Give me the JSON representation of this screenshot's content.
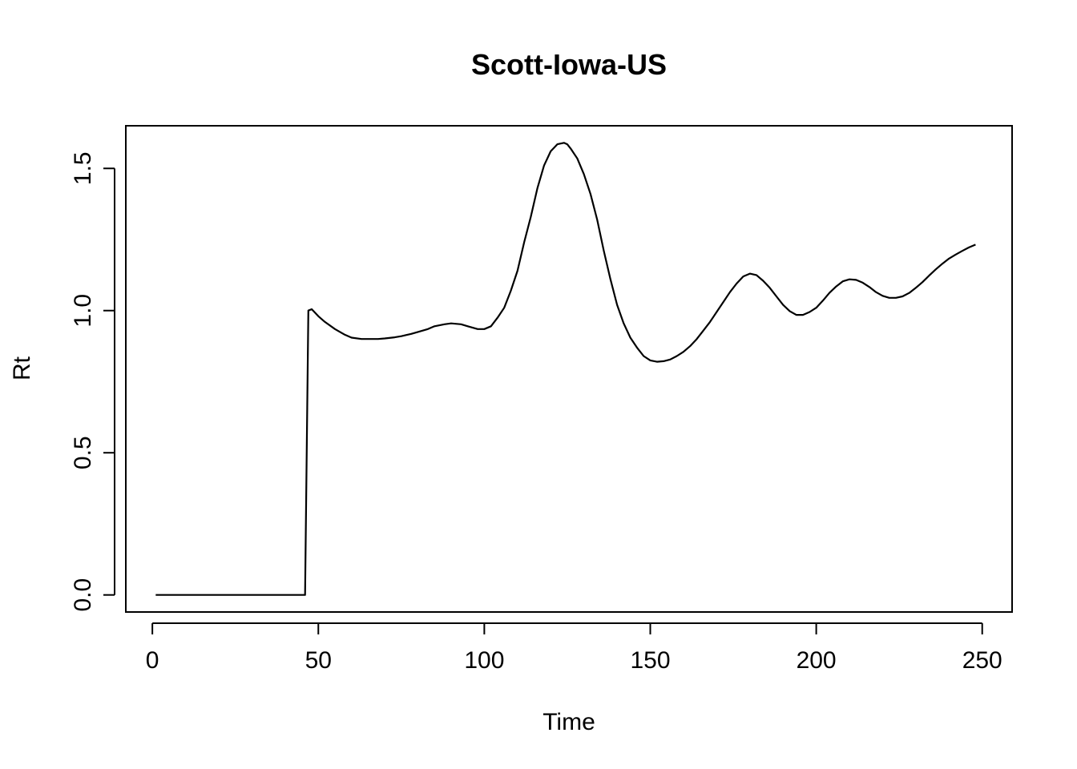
{
  "chart_data": {
    "type": "line",
    "title": "Scott-Iowa-US",
    "xlabel": "Time",
    "ylabel": "Rt",
    "xlim": [
      -8,
      259
    ],
    "ylim": [
      -0.06,
      1.65
    ],
    "x_ticks": [
      0,
      50,
      100,
      150,
      200,
      250
    ],
    "x_tick_labels": [
      "0",
      "50",
      "100",
      "150",
      "200",
      "250"
    ],
    "y_ticks": [
      0.0,
      0.5,
      1.0,
      1.5
    ],
    "y_tick_labels": [
      "0.0",
      "0.5",
      "1.0",
      "1.5"
    ],
    "grid": false,
    "legend": "none",
    "line_color": "#000000",
    "series": [
      {
        "x": [
          1,
          10,
          20,
          30,
          40,
          46,
          47,
          48,
          50,
          52,
          55,
          58,
          60,
          63,
          65,
          68,
          70,
          73,
          75,
          78,
          80,
          83,
          85,
          88,
          90,
          93,
          95,
          98,
          100,
          102,
          104,
          106,
          108,
          110,
          112,
          114,
          116,
          118,
          120,
          122,
          124,
          125,
          126,
          128,
          130,
          132,
          134,
          136,
          138,
          140,
          142,
          144,
          146,
          148,
          150,
          152,
          154,
          156,
          158,
          160,
          162,
          164,
          166,
          168,
          170,
          172,
          174,
          176,
          178,
          180,
          182,
          184,
          186,
          188,
          190,
          192,
          194,
          196,
          198,
          200,
          202,
          204,
          206,
          208,
          210,
          212,
          214,
          216,
          218,
          220,
          222,
          224,
          226,
          228,
          230,
          232,
          234,
          236,
          238,
          240,
          242,
          244,
          246,
          248
        ],
        "y": [
          0,
          0,
          0,
          0,
          0,
          0,
          1.0,
          1.005,
          0.98,
          0.96,
          0.935,
          0.915,
          0.905,
          0.9,
          0.9,
          0.9,
          0.902,
          0.906,
          0.91,
          0.918,
          0.925,
          0.935,
          0.945,
          0.952,
          0.955,
          0.952,
          0.945,
          0.935,
          0.935,
          0.945,
          0.975,
          1.01,
          1.07,
          1.14,
          1.24,
          1.33,
          1.43,
          1.51,
          1.56,
          1.585,
          1.59,
          1.585,
          1.57,
          1.535,
          1.48,
          1.41,
          1.32,
          1.21,
          1.11,
          1.02,
          0.955,
          0.905,
          0.87,
          0.84,
          0.825,
          0.82,
          0.822,
          0.828,
          0.84,
          0.855,
          0.875,
          0.9,
          0.93,
          0.96,
          0.995,
          1.03,
          1.065,
          1.095,
          1.12,
          1.13,
          1.125,
          1.105,
          1.08,
          1.05,
          1.02,
          0.998,
          0.985,
          0.985,
          0.995,
          1.01,
          1.035,
          1.063,
          1.085,
          1.103,
          1.11,
          1.108,
          1.098,
          1.083,
          1.065,
          1.052,
          1.045,
          1.045,
          1.05,
          1.062,
          1.08,
          1.1,
          1.123,
          1.145,
          1.165,
          1.183,
          1.197,
          1.21,
          1.222,
          1.232
        ]
      }
    ]
  }
}
